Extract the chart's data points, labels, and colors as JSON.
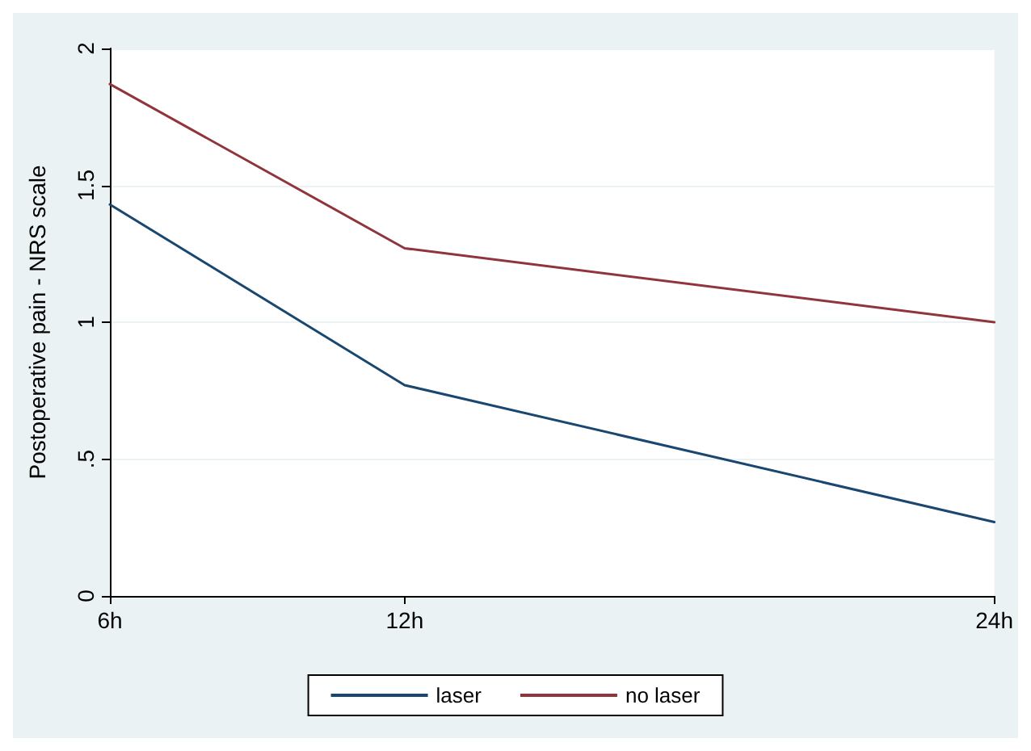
{
  "chart_data": {
    "type": "line",
    "ylabel": "Postoperative pain - NRS scale",
    "x": [
      6,
      12,
      24
    ],
    "series": [
      {
        "name": "laser",
        "color": "#1a476f",
        "values": [
          1.43,
          0.77,
          0.27
        ]
      },
      {
        "name": "no laser",
        "color": "#90353b",
        "values": [
          1.87,
          1.27,
          1.0
        ]
      }
    ],
    "xlim": [
      6,
      24
    ],
    "xticks": [
      {
        "value": 6,
        "label": "6h"
      },
      {
        "value": 12,
        "label": "12h"
      },
      {
        "value": 24,
        "label": "24h"
      }
    ],
    "ylim": [
      0,
      2
    ],
    "yticks": [
      {
        "value": 0,
        "label": "0"
      },
      {
        "value": 0.5,
        "label": ".5"
      },
      {
        "value": 1,
        "label": "1"
      },
      {
        "value": 1.5,
        "label": "1.5"
      },
      {
        "value": 2,
        "label": "2"
      }
    ],
    "grid": "y",
    "legend": "bottom",
    "marker": "none",
    "line_style": "solid"
  }
}
